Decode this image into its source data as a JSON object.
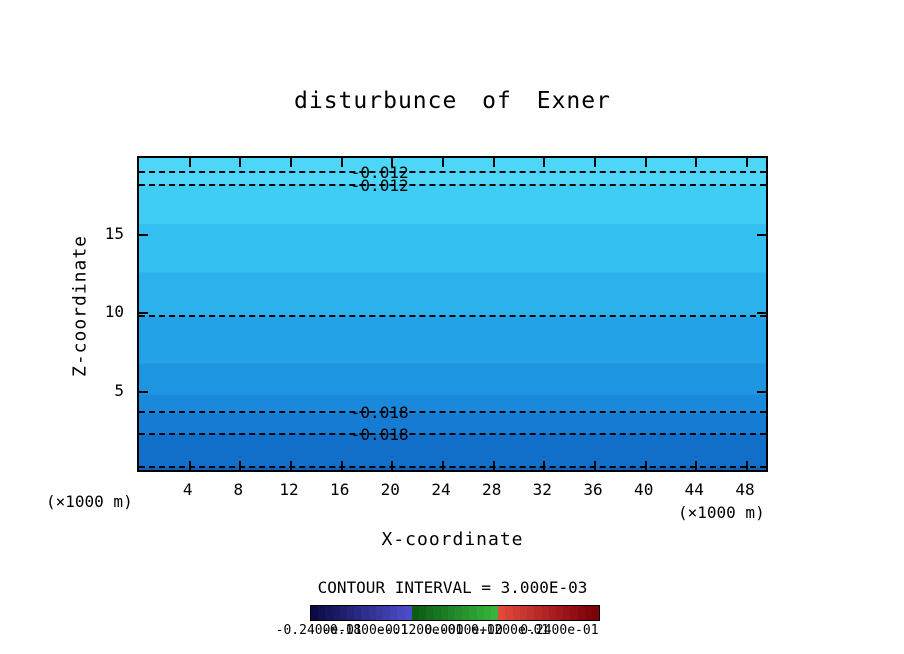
{
  "title": "disturbunce of Exner",
  "axes": {
    "x_label": "X-coordinate",
    "y_label": "Z-coordinate",
    "unit_left": "(×1000 m)",
    "unit_right": "(×1000 m)"
  },
  "contour_note": "CONTOUR INTERVAL = 3.000E-03",
  "chart_data": {
    "type": "heatmap",
    "subtype": "filled-contour",
    "title": "disturbunce of Exner",
    "xlabel": "X-coordinate",
    "ylabel": "Z-coordinate",
    "x_units": "(×1000 m)",
    "y_units": "(×1000 m)",
    "xlim": [
      0,
      49.5
    ],
    "ylim": [
      0,
      19.9
    ],
    "x_ticks": [
      4,
      8,
      12,
      16,
      20,
      24,
      28,
      32,
      36,
      40,
      44,
      48
    ],
    "y_ticks": [
      15,
      10,
      5
    ],
    "grid": false,
    "contour_interval": "3.000E-03",
    "contour_label_x": 19,
    "contour_lines": [
      {
        "z": 19.0,
        "label": "-0.012"
      },
      {
        "z": 18.2,
        "label": "-0.012"
      },
      {
        "z": 9.8,
        "label": ""
      },
      {
        "z": 3.7,
        "label": "-0.018"
      },
      {
        "z": 2.3,
        "label": "-0.018"
      },
      {
        "z": 0.2,
        "label": ""
      }
    ],
    "fill_bands": [
      {
        "z_from": 18.2,
        "z_to": 19.9,
        "color": "#4dd6f8",
        "value": "-0.012"
      },
      {
        "z_from": 15.7,
        "z_to": 18.2,
        "color": "#40cdf5",
        "value": "-0.013"
      },
      {
        "z_from": 12.6,
        "z_to": 15.7,
        "color": "#33bff0",
        "value": "-0.014"
      },
      {
        "z_from": 9.8,
        "z_to": 12.6,
        "color": "#2bb2ec",
        "value": "-0.015"
      },
      {
        "z_from": 6.8,
        "z_to": 9.8,
        "color": "#24a2e7",
        "value": "-0.016"
      },
      {
        "z_from": 4.8,
        "z_to": 6.8,
        "color": "#1e95e1",
        "value": "-0.017"
      },
      {
        "z_from": 3.6,
        "z_to": 4.8,
        "color": "#1a89db",
        "value": "-0.018"
      },
      {
        "z_from": 2.3,
        "z_to": 3.6,
        "color": "#167bd3",
        "value": "-0.019"
      },
      {
        "z_from": 0.15,
        "z_to": 2.3,
        "color": "#126fc9",
        "value": "-0.020"
      },
      {
        "z_from": 0.0,
        "z_to": 0.15,
        "color": "#0e62be",
        "value": "-0.021"
      }
    ],
    "colorbar": {
      "labels": [
        {
          "text": "-0.2400e-01",
          "pos": 0.03
        },
        {
          "text": "-0.1800e-01",
          "pos": 0.19
        },
        {
          "text": "-0.1200e-01",
          "pos": 0.38
        },
        {
          "text": "0.0000e+00",
          "pos": 0.53
        },
        {
          "text": "0.1200e-01",
          "pos": 0.69
        },
        {
          "text": "0.2400e-01",
          "pos": 0.86
        }
      ],
      "colors": [
        "#0b0b46",
        "#101050",
        "#15155a",
        "#1a1a64",
        "#1f1f6e",
        "#242478",
        "#292982",
        "#2e2e8c",
        "#333396",
        "#3838a0",
        "#3d3daa",
        "#4242b4",
        "#4747be",
        "#4c4cc8",
        "#0c5c14",
        "#106418",
        "#146c1c",
        "#187420",
        "#1c7c24",
        "#208428",
        "#248c2c",
        "#28942c",
        "#2c9c30",
        "#30a434",
        "#34ac38",
        "#38b43c",
        "#e04838",
        "#d84234",
        "#d03c30",
        "#c83630",
        "#c0302c",
        "#b82a28",
        "#b02424",
        "#a81e20",
        "#a0181c",
        "#981218",
        "#900e14",
        "#880a10",
        "#80060c",
        "#780408"
      ]
    }
  }
}
